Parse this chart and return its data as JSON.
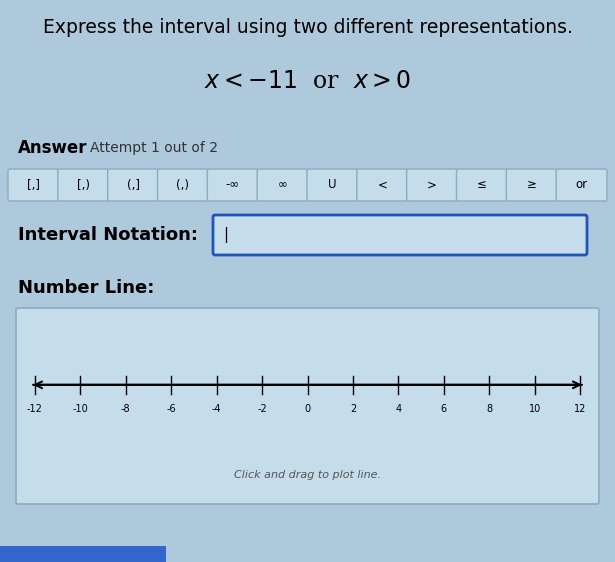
{
  "background_color": "#aec8dc",
  "title_text": "Express the interval using two different representations.",
  "title_fontsize": 13.5,
  "title_color": "#000000",
  "equation_text": "$x < -11$  or  $x > 0$",
  "equation_fontsize": 17,
  "equation_color": "#000000",
  "answer_bold": "Answer",
  "answer_normal": "Attempt 1 out of 2",
  "answer_fontsize": 12,
  "attempt_fontsize": 10,
  "buttons": [
    "[,]",
    "[,)",
    "(,]",
    "(,)",
    "-∞",
    "∞",
    "U",
    "<",
    ">",
    "≤",
    "≥",
    "or"
  ],
  "button_bg": "#c5dcea",
  "button_border": "#8aacbe",
  "interval_label": "Interval Notation:",
  "interval_fontsize": 13,
  "numberline_label": "Number Line:",
  "numberline_fontsize": 13,
  "numberline_min": -12,
  "numberline_max": 12,
  "numberline_ticks": [
    -12,
    -10,
    -8,
    -6,
    -4,
    -2,
    0,
    2,
    4,
    6,
    8,
    10,
    12
  ],
  "numberline_hint": "Click and drag to plot line.",
  "numberline_bg": "#c5dcea",
  "numberline_border": "#8aacbe",
  "input_box_border": "#2255bb",
  "input_box_bg": "#c5dcea",
  "blue_bar_color": "#3366cc",
  "blue_bar_width": 0.27
}
